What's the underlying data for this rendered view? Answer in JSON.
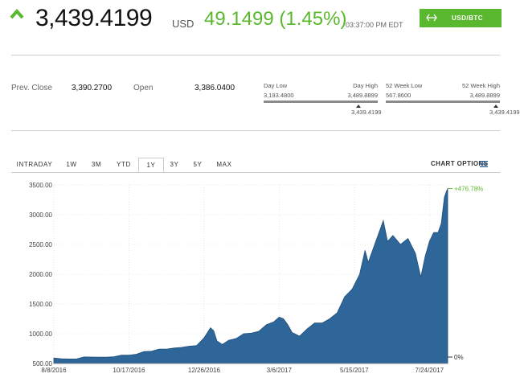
{
  "quote": {
    "price": "3,439.4199",
    "currency": "USD",
    "change": "49.1499 (1.45%)",
    "time": "03:37:00 PM EDT",
    "pair_button": "USD/BTC"
  },
  "stats": {
    "prev_close_label": "Prev. Close",
    "prev_close_value": "3,390.2700",
    "open_label": "Open",
    "open_value": "3,386.0400",
    "day_low_label": "Day Low",
    "day_high_label": "Day High",
    "day_low_value": "3,193.4800",
    "day_high_value": "3,489.8899",
    "day_current": "3,439.4199",
    "week52_low_label": "52 Week Low",
    "week52_high_label": "52 Week High",
    "week52_low_value": "567.8600",
    "week52_high_value": "3,489.8899",
    "week52_current": "3,439.4199"
  },
  "tabs": [
    "INTRADAY",
    "1W",
    "3M",
    "YTD",
    "1Y",
    "3Y",
    "5Y",
    "MAX"
  ],
  "active_tab": "1Y",
  "chart_options_label": "CHART OPTIONS",
  "colors": {
    "accent_green": "#5ab82e",
    "area_fill": "#2e6699",
    "area_line": "#1f4f7a"
  },
  "chart_data": {
    "type": "area",
    "yticks": [
      "3500.00",
      "3000.00",
      "2500.00",
      "2000.00",
      "1500.00",
      "1000.00",
      "500.00"
    ],
    "ylim": [
      500,
      3500
    ],
    "xticks": [
      "8/8/2016",
      "10/17/2016",
      "12/26/2016",
      "3/6/2017",
      "5/15/2017",
      "7/24/2017"
    ],
    "xlim": [
      "2016-08-08",
      "2017-08-10"
    ],
    "annotations": {
      "top": "+476.78%",
      "bottom": "0%"
    },
    "series": [
      {
        "x": [
          "2016-08-08",
          "2016-08-15",
          "2016-08-22",
          "2016-08-29",
          "2016-09-05",
          "2016-09-12",
          "2016-09-19",
          "2016-09-26",
          "2016-10-03",
          "2016-10-10",
          "2016-10-17",
          "2016-10-24",
          "2016-10-31",
          "2016-11-07",
          "2016-11-14",
          "2016-11-21",
          "2016-11-28",
          "2016-12-05",
          "2016-12-12",
          "2016-12-19",
          "2016-12-26",
          "2017-01-01",
          "2017-01-04",
          "2017-01-07",
          "2017-01-12",
          "2017-01-18",
          "2017-01-25",
          "2017-02-01",
          "2017-02-08",
          "2017-02-15",
          "2017-02-22",
          "2017-03-01",
          "2017-03-06",
          "2017-03-10",
          "2017-03-14",
          "2017-03-18",
          "2017-03-25",
          "2017-04-01",
          "2017-04-08",
          "2017-04-15",
          "2017-04-22",
          "2017-04-29",
          "2017-05-06",
          "2017-05-13",
          "2017-05-20",
          "2017-05-25",
          "2017-05-28",
          "2017-06-03",
          "2017-06-08",
          "2017-06-11",
          "2017-06-15",
          "2017-06-20",
          "2017-06-27",
          "2017-07-04",
          "2017-07-11",
          "2017-07-16",
          "2017-07-20",
          "2017-07-24",
          "2017-07-28",
          "2017-08-01",
          "2017-08-04",
          "2017-08-07",
          "2017-08-09",
          "2017-08-10"
        ],
        "y": [
          592,
          580,
          575,
          575,
          610,
          608,
          605,
          605,
          612,
          640,
          640,
          655,
          700,
          705,
          740,
          742,
          760,
          770,
          790,
          800,
          930,
          1100,
          1050,
          880,
          820,
          890,
          920,
          1000,
          1010,
          1040,
          1150,
          1200,
          1280,
          1250,
          1150,
          1020,
          960,
          1080,
          1180,
          1180,
          1250,
          1350,
          1620,
          1750,
          2000,
          2400,
          2200,
          2500,
          2750,
          2900,
          2550,
          2650,
          2500,
          2600,
          2350,
          1950,
          2300,
          2550,
          2700,
          2700,
          2850,
          3300,
          3400,
          3439
        ]
      }
    ]
  }
}
